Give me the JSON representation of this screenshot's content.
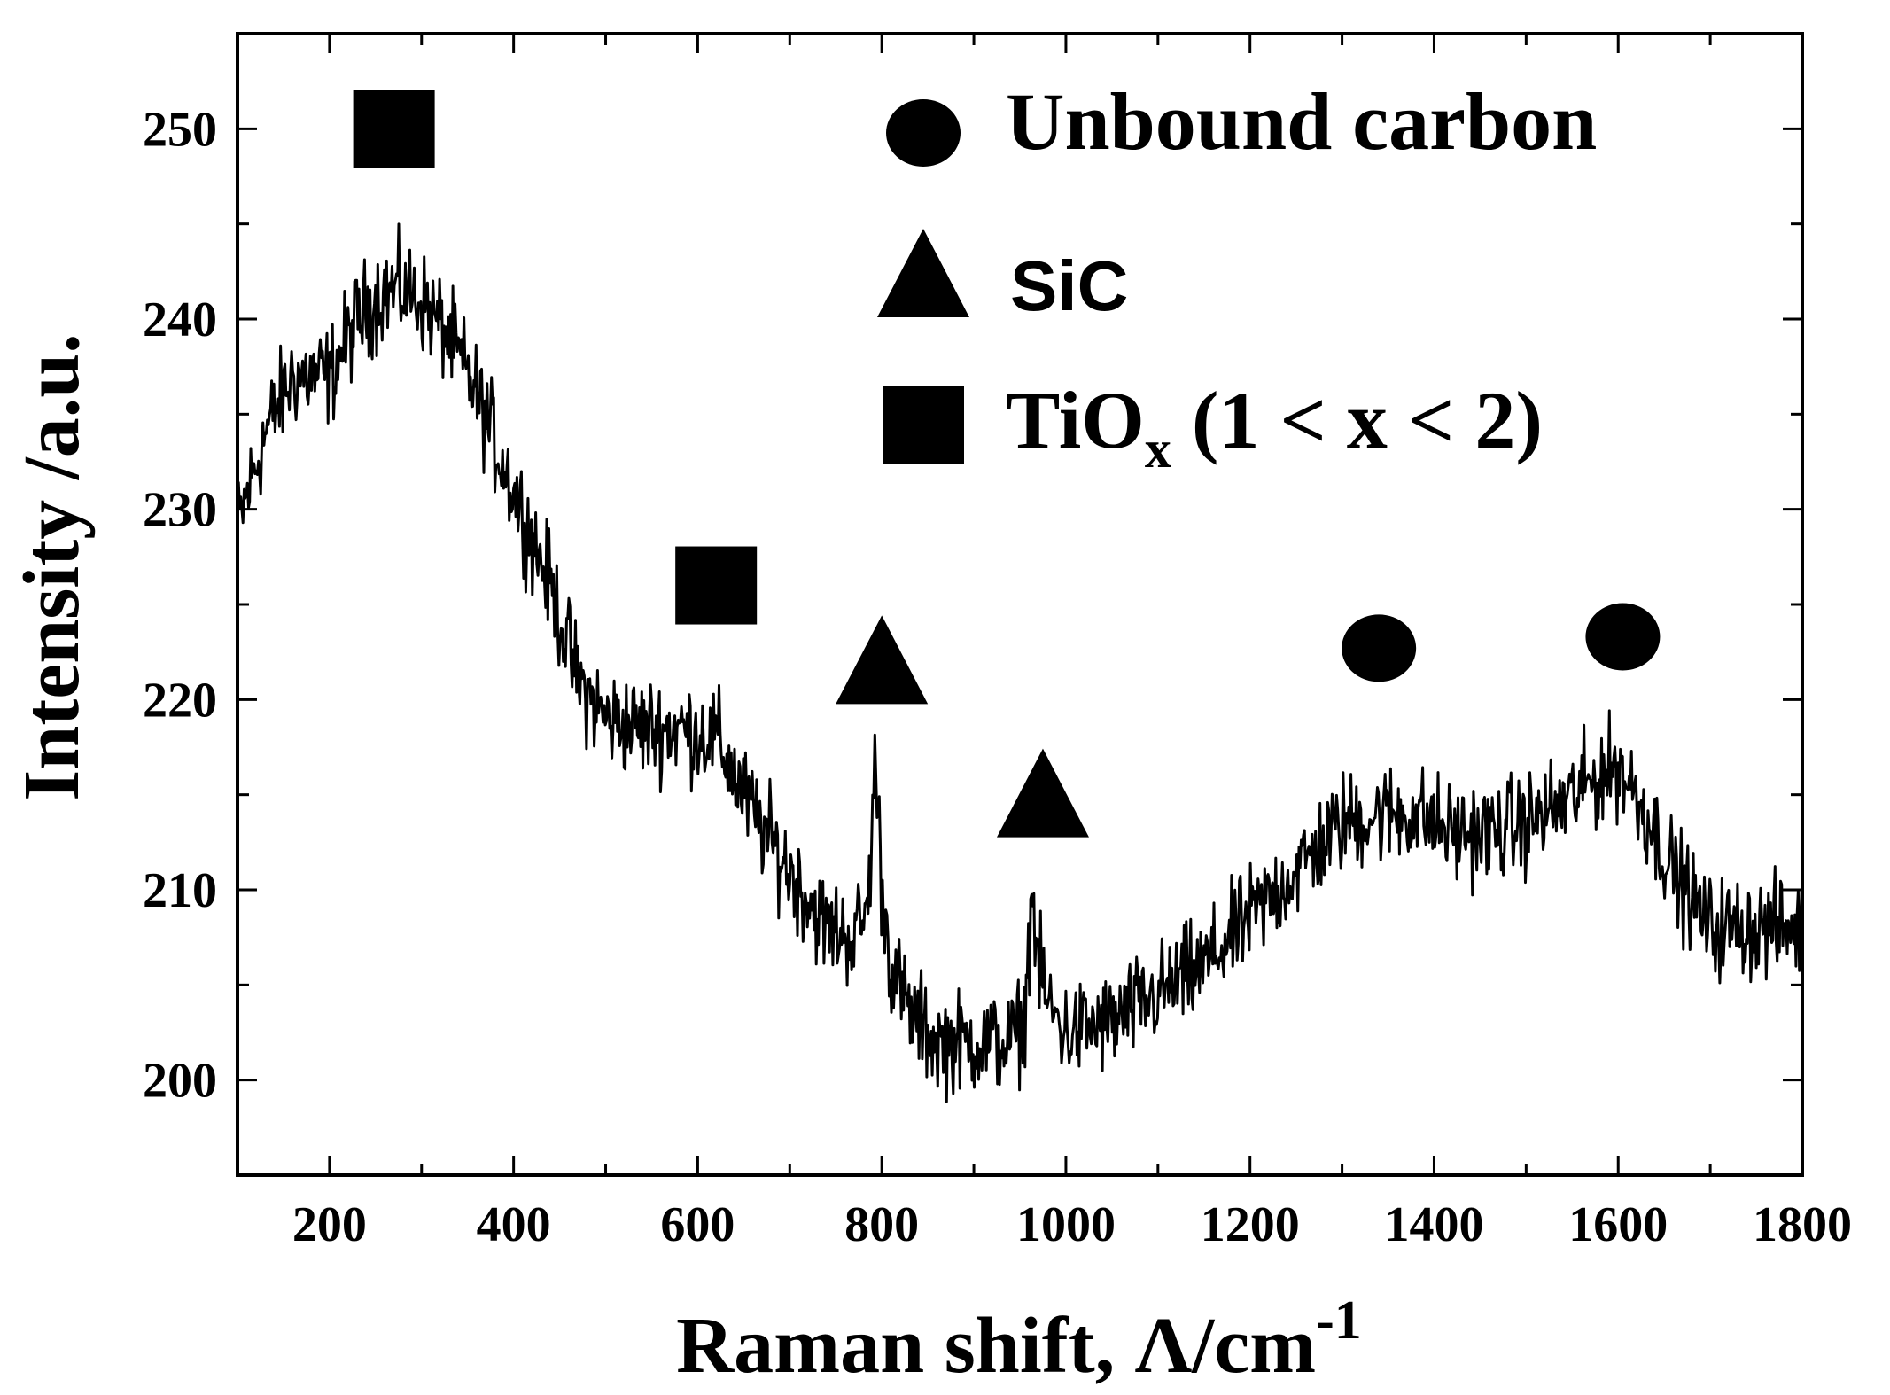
{
  "chart_data": {
    "type": "line",
    "xlabel": "Raman shift, Λ/cm",
    "xlabel_sup": "-1",
    "ylabel": "Intensity /a.u.",
    "xlim": [
      100,
      1800
    ],
    "ylim": [
      195,
      255
    ],
    "xticks": [
      200,
      400,
      600,
      800,
      1000,
      1200,
      1400,
      1600,
      1800
    ],
    "yticks": [
      200,
      210,
      220,
      230,
      240,
      250
    ],
    "grid": false,
    "legend_position": "top-right",
    "series": [
      {
        "anchors_x": [
          100,
          130,
          160,
          200,
          230,
          260,
          280,
          300,
          330,
          360,
          400,
          440,
          470,
          500,
          540,
          580,
          620,
          660,
          700,
          740,
          770,
          785,
          793,
          800,
          810,
          830,
          860,
          900,
          940,
          955,
          963,
          970,
          980,
          1000,
          1050,
          1100,
          1150,
          1200,
          1250,
          1300,
          1340,
          1380,
          1420,
          1460,
          1500,
          1540,
          1580,
          1600,
          1620,
          1660,
          1700,
          1750,
          1800
        ],
        "anchors_y": [
          229,
          234,
          237,
          237,
          240,
          241.5,
          241.5,
          241,
          239,
          236,
          231,
          226,
          221,
          219,
          218.5,
          218.5,
          218,
          214,
          211,
          208,
          207.5,
          209,
          217,
          210,
          206,
          203.5,
          202,
          202,
          202,
          203,
          210,
          206,
          204,
          202.5,
          203,
          204.5,
          206,
          208.5,
          211,
          213.5,
          214,
          214,
          213,
          213,
          213.5,
          214.5,
          216,
          216.5,
          215,
          211,
          208,
          208,
          208
        ],
        "noise": 1.3
      }
    ]
  },
  "legend": [
    {
      "marker": "circle",
      "label": "Unbound carbon"
    },
    {
      "marker": "triangle",
      "label": "SiC"
    },
    {
      "marker": "square",
      "label": "TiO",
      "sub": "x",
      "tail": " (1 < x < 2)"
    }
  ],
  "peak_markers": [
    {
      "marker": "square",
      "x": 270,
      "y": 250
    },
    {
      "marker": "square",
      "x": 620,
      "y": 226
    },
    {
      "marker": "triangle",
      "x": 800,
      "y": 222
    },
    {
      "marker": "triangle",
      "x": 975,
      "y": 215
    },
    {
      "marker": "circle",
      "x": 1340,
      "y": 222.7
    },
    {
      "marker": "circle",
      "x": 1605,
      "y": 223.3
    }
  ],
  "colors": {
    "line": "#000000",
    "background": "#ffffff"
  }
}
